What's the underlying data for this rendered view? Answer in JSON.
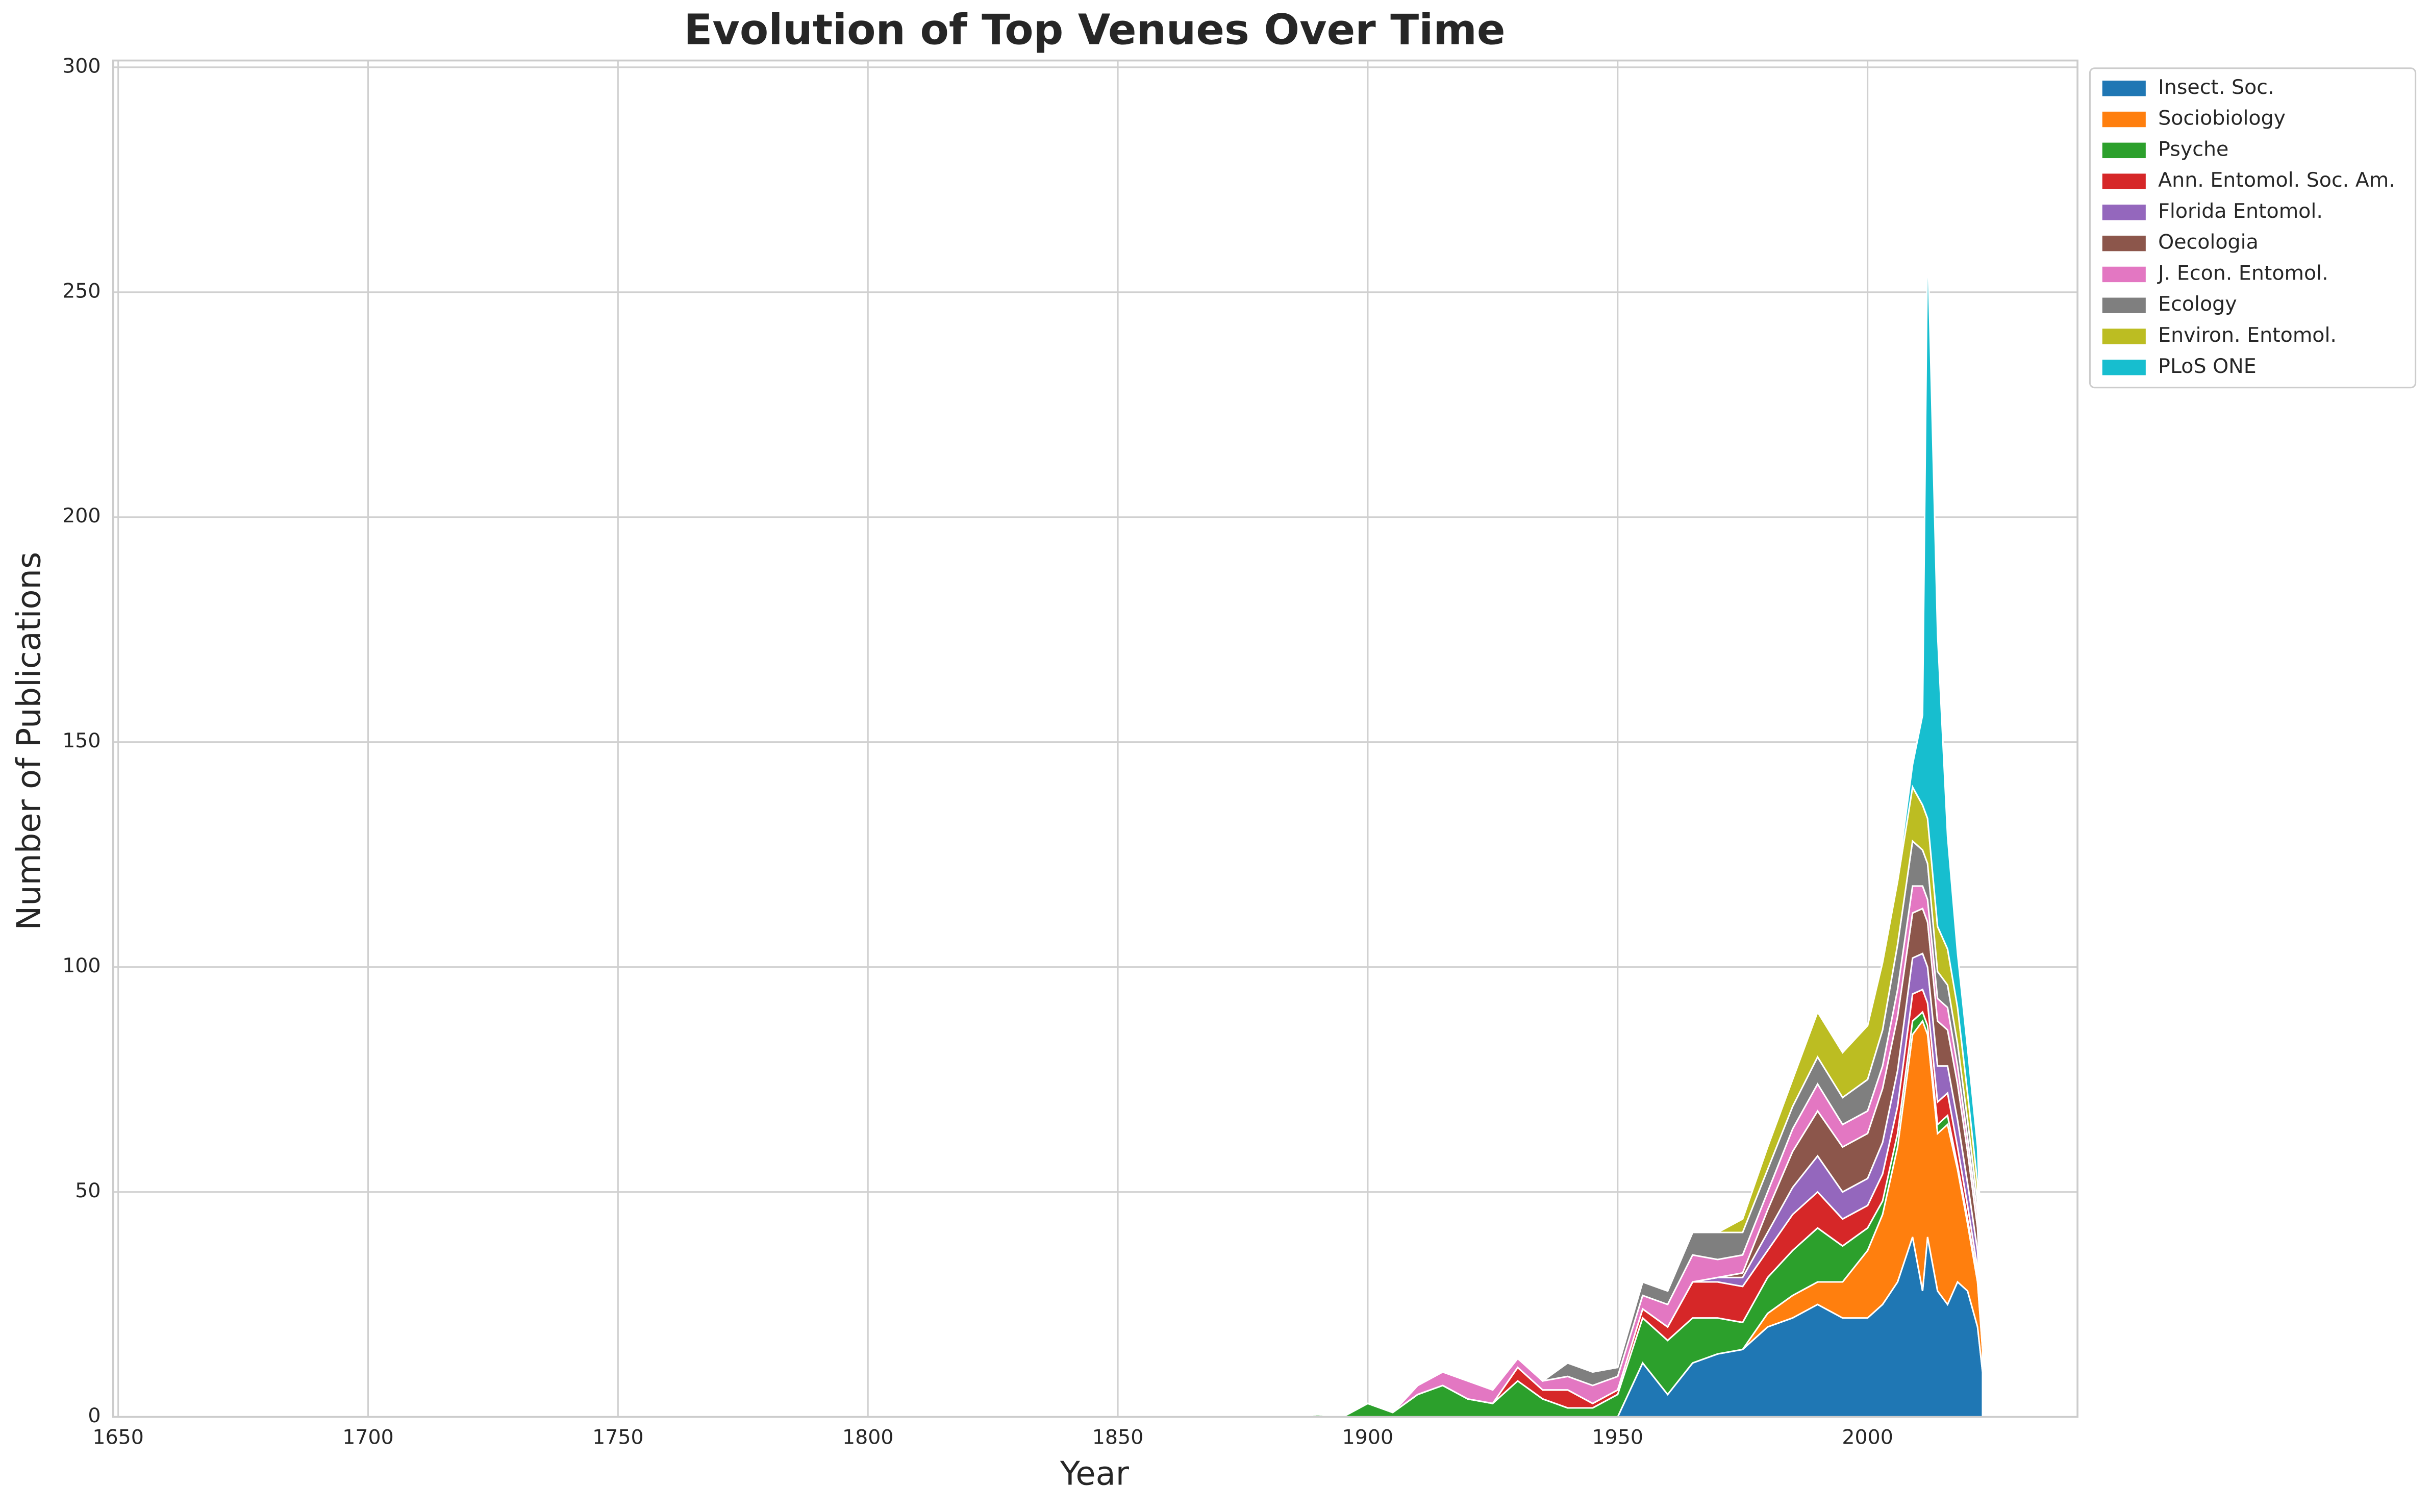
{
  "chart_data": {
    "type": "stackplot",
    "title": "Evolution of Top Venues Over Time",
    "x_label": "Year",
    "y_label": "Number of Publications",
    "x": [
      1880,
      1885,
      1890,
      1895,
      1900,
      1905,
      1910,
      1915,
      1920,
      1925,
      1930,
      1935,
      1940,
      1945,
      1950,
      1955,
      1960,
      1965,
      1970,
      1975,
      1980,
      1985,
      1990,
      1995,
      2000,
      2003,
      2006,
      2009,
      2011,
      2012,
      2014,
      2016,
      2018,
      2020,
      2022,
      2023
    ],
    "series": [
      {
        "name": "Insect. Soc.",
        "color": "#1f77b4",
        "values": [
          0,
          0,
          0,
          0,
          0,
          0,
          0,
          0,
          0,
          0,
          0,
          0,
          0,
          0,
          0,
          12,
          5,
          12,
          14,
          15,
          20,
          22,
          25,
          22,
          22,
          25,
          30,
          40,
          28,
          40,
          28,
          25,
          30,
          28,
          20,
          10
        ]
      },
      {
        "name": "Sociobiology",
        "color": "#ff7f0e",
        "values": [
          0,
          0,
          0,
          0,
          0,
          0,
          0,
          0,
          0,
          0,
          0,
          0,
          0,
          0,
          0,
          0,
          0,
          0,
          0,
          0,
          3,
          5,
          5,
          8,
          15,
          20,
          30,
          45,
          60,
          45,
          35,
          40,
          25,
          15,
          10,
          5
        ]
      },
      {
        "name": "Psyche",
        "color": "#2ca02c",
        "values": [
          0,
          0,
          0.5,
          0,
          3,
          1,
          5,
          7,
          4,
          3,
          8,
          4,
          2,
          2,
          5,
          10,
          12,
          10,
          8,
          6,
          8,
          10,
          12,
          8,
          5,
          3,
          3,
          3,
          2,
          2,
          2,
          2,
          1,
          1,
          1,
          0
        ]
      },
      {
        "name": "Ann. Entomol. Soc. Am.",
        "color": "#d62728",
        "values": [
          0,
          0,
          0,
          0,
          0,
          0,
          0,
          0,
          0,
          0,
          3,
          2,
          4,
          1,
          1,
          2,
          3,
          8,
          8,
          8,
          6,
          8,
          8,
          6,
          5,
          6,
          6,
          6,
          5,
          5,
          5,
          5,
          4,
          3,
          2,
          1
        ]
      },
      {
        "name": "Florida Entomol.",
        "color": "#9467bd",
        "values": [
          0,
          0,
          0,
          0,
          0,
          0,
          0,
          0,
          0,
          0,
          0,
          0,
          0,
          0,
          0,
          0,
          0,
          0,
          1,
          2,
          4,
          6,
          8,
          6,
          6,
          7,
          8,
          8,
          8,
          8,
          8,
          6,
          6,
          5,
          4,
          2
        ]
      },
      {
        "name": "Oecologia",
        "color": "#8c564b",
        "values": [
          0,
          0,
          0,
          0,
          0,
          0,
          0,
          0,
          0,
          0,
          0,
          0,
          0,
          0,
          0,
          0,
          0,
          0,
          0,
          1,
          5,
          8,
          10,
          10,
          10,
          12,
          12,
          10,
          10,
          10,
          10,
          8,
          8,
          7,
          5,
          3
        ]
      },
      {
        "name": "J. Econ. Entomol.",
        "color": "#e377c2",
        "values": [
          0,
          0,
          0,
          0,
          0,
          0,
          2,
          3,
          4,
          3,
          2,
          2,
          3,
          4,
          3,
          3,
          5,
          6,
          4,
          4,
          4,
          5,
          6,
          5,
          5,
          5,
          6,
          6,
          5,
          5,
          5,
          5,
          4,
          3,
          3,
          2
        ]
      },
      {
        "name": "Ecology",
        "color": "#7f7f7f",
        "values": [
          0,
          0,
          0,
          0,
          0,
          0,
          0,
          0,
          0,
          0,
          0,
          0,
          3,
          3,
          2,
          3,
          3,
          5,
          6,
          5,
          5,
          5,
          6,
          6,
          7,
          8,
          10,
          10,
          8,
          8,
          6,
          5,
          5,
          4,
          3,
          2
        ]
      },
      {
        "name": "Environ. Entomol.",
        "color": "#bcbd22",
        "values": [
          0,
          0,
          0,
          0,
          0,
          0,
          0,
          0,
          0,
          0,
          0,
          0,
          0,
          0,
          0,
          0,
          0,
          0,
          0,
          3,
          5,
          6,
          10,
          10,
          12,
          15,
          14,
          12,
          10,
          10,
          10,
          8,
          8,
          6,
          4,
          2
        ]
      },
      {
        "name": "PLoS ONE",
        "color": "#17becf",
        "values": [
          0,
          0,
          0,
          0,
          0,
          0,
          0,
          0,
          0,
          0,
          0,
          0,
          0,
          0,
          0,
          0,
          0,
          0,
          0,
          0,
          0,
          0,
          0,
          0,
          0,
          0,
          1,
          5,
          20,
          130,
          65,
          25,
          12,
          10,
          8,
          5
        ]
      }
    ],
    "xlim": [
      1649,
      2042
    ],
    "ylim": [
      0,
      301.5
    ],
    "xticks": [
      1650,
      1700,
      1750,
      1800,
      1850,
      1900,
      1950,
      2000
    ],
    "yticks": [
      0,
      50,
      100,
      150,
      200,
      250,
      300
    ],
    "grid": true,
    "legend": "upper right outside"
  }
}
